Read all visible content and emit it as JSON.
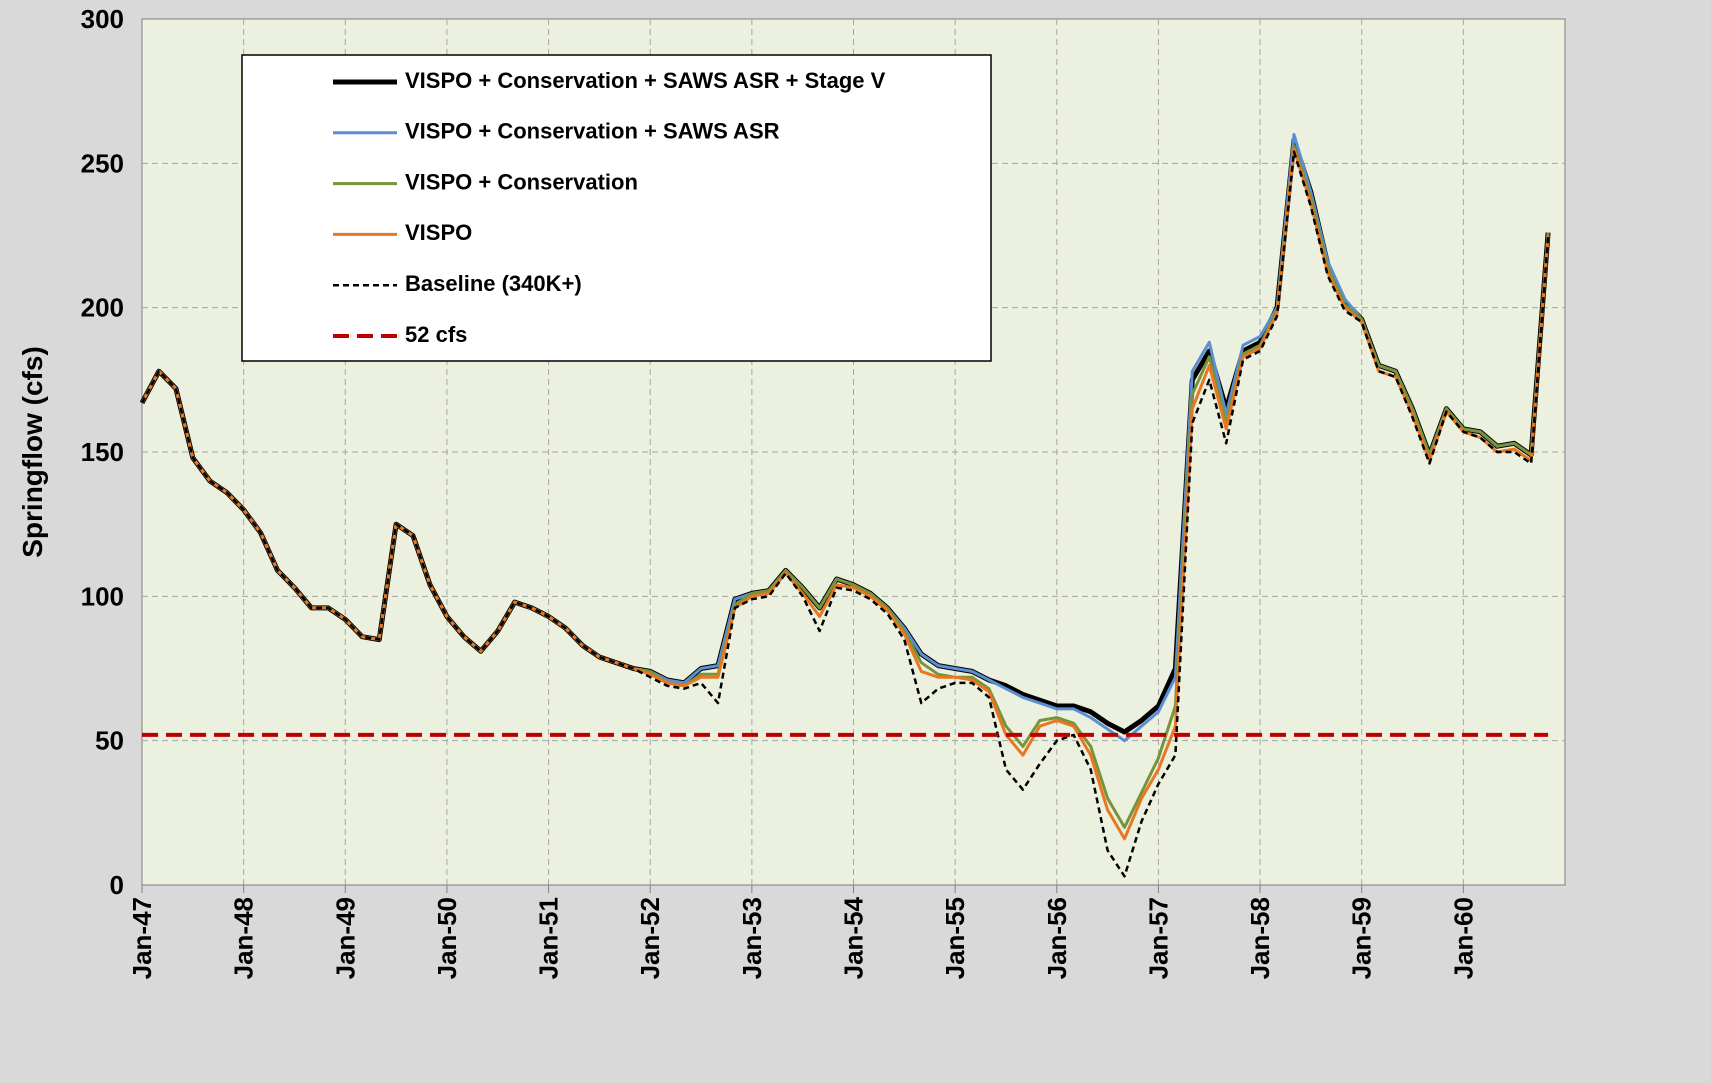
{
  "chart_data": {
    "type": "line",
    "y_label": "Springflow (cfs)",
    "categories": [
      "Jan-47",
      null,
      null,
      null,
      null,
      null,
      "Jan-48",
      null,
      null,
      null,
      null,
      null,
      "Jan-49",
      null,
      null,
      null,
      null,
      null,
      "Jan-50",
      null,
      null,
      null,
      null,
      null,
      "Jan-51",
      null,
      null,
      null,
      null,
      null,
      "Jan-52",
      null,
      null,
      null,
      null,
      null,
      "Jan-53",
      null,
      null,
      null,
      null,
      null,
      "Jan-54",
      null,
      null,
      null,
      null,
      null,
      "Jan-55",
      null,
      null,
      null,
      null,
      null,
      "Jan-56",
      null,
      null,
      null,
      null,
      null,
      "Jan-57",
      null,
      null,
      null,
      null,
      null,
      "Jan-58",
      null,
      null,
      null,
      null,
      null,
      "Jan-59",
      null,
      null,
      null,
      null,
      null,
      "Jan-60",
      null,
      null,
      null,
      null,
      null
    ],
    "ylim": [
      0,
      300
    ],
    "yticks": [
      0,
      50,
      100,
      150,
      200,
      250,
      300
    ],
    "grid": true,
    "legend": "upper left",
    "series": [
      {
        "name": "VISPO + Conservation + SAWS ASR +  Stage V",
        "color": "#000000",
        "width": 5,
        "dash": "none",
        "values": [
          167,
          178,
          172,
          148,
          140,
          136,
          130,
          122,
          109,
          103,
          96,
          96,
          92,
          86,
          85,
          125,
          121,
          104,
          93,
          86,
          81,
          88,
          98,
          96,
          93,
          89,
          83,
          79,
          77,
          75,
          74,
          71,
          70,
          75,
          76,
          99,
          101,
          102,
          109,
          103,
          96,
          106,
          104,
          101,
          96,
          89,
          80,
          76,
          75,
          74,
          71,
          69,
          66,
          64,
          62,
          62,
          60,
          56,
          53,
          57,
          62,
          75,
          175,
          185,
          165,
          185,
          188,
          200,
          258,
          240,
          215,
          202,
          196,
          180,
          178,
          165,
          149,
          165,
          158,
          157,
          152,
          153,
          149,
          226
        ]
      },
      {
        "name": "VISPO + Conservation + SAWS ASR",
        "color": "#5b8fd4",
        "width": 3,
        "dash": "none",
        "values": [
          167,
          178,
          172,
          148,
          140,
          136,
          130,
          122,
          109,
          103,
          96,
          96,
          92,
          86,
          85,
          125,
          121,
          104,
          93,
          86,
          81,
          88,
          98,
          96,
          93,
          89,
          83,
          79,
          77,
          75,
          74,
          71,
          70,
          75,
          76,
          99,
          101,
          102,
          109,
          103,
          96,
          106,
          104,
          101,
          96,
          89,
          80,
          76,
          75,
          74,
          71,
          68,
          65,
          63,
          61,
          61,
          58,
          54,
          50,
          55,
          60,
          72,
          178,
          188,
          163,
          187,
          190,
          200,
          260,
          240,
          216,
          203,
          196,
          180,
          178,
          165,
          149,
          165,
          158,
          157,
          152,
          153,
          149,
          226
        ]
      },
      {
        "name": "VISPO + Conservation",
        "color": "#77933c",
        "width": 3,
        "dash": "none",
        "values": [
          167,
          178,
          172,
          148,
          140,
          136,
          130,
          122,
          109,
          103,
          96,
          96,
          92,
          86,
          85,
          125,
          121,
          104,
          93,
          86,
          81,
          88,
          98,
          96,
          93,
          89,
          83,
          79,
          77,
          75,
          74,
          70,
          69,
          73,
          73,
          97,
          101,
          102,
          109,
          103,
          96,
          106,
          104,
          101,
          96,
          88,
          77,
          73,
          72,
          72,
          68,
          55,
          48,
          57,
          58,
          56,
          48,
          30,
          20,
          32,
          44,
          62,
          170,
          183,
          160,
          184,
          187,
          199,
          256,
          238,
          214,
          201,
          196,
          180,
          178,
          165,
          149,
          165,
          158,
          157,
          152,
          153,
          149,
          226
        ]
      },
      {
        "name": "VISPO",
        "color": "#e87722",
        "width": 3,
        "dash": "none",
        "values": [
          167,
          178,
          172,
          148,
          140,
          136,
          130,
          122,
          109,
          103,
          96,
          96,
          92,
          86,
          85,
          125,
          121,
          104,
          93,
          86,
          81,
          88,
          98,
          96,
          93,
          89,
          83,
          79,
          77,
          75,
          73,
          70,
          69,
          72,
          72,
          96,
          100,
          101,
          108,
          101,
          93,
          104,
          103,
          100,
          95,
          87,
          74,
          72,
          72,
          71,
          67,
          52,
          45,
          55,
          57,
          55,
          45,
          26,
          16,
          30,
          40,
          55,
          165,
          180,
          158,
          183,
          186,
          198,
          255,
          236,
          212,
          200,
          195,
          178,
          176,
          163,
          147,
          164,
          157,
          155,
          150,
          151,
          147,
          225
        ]
      },
      {
        "name": "Baseline (340K+)",
        "color": "#000000",
        "width": 2.5,
        "dash": "6,4",
        "values": [
          167,
          178,
          172,
          148,
          140,
          136,
          130,
          122,
          109,
          103,
          96,
          96,
          92,
          86,
          85,
          125,
          121,
          104,
          93,
          86,
          81,
          88,
          98,
          96,
          93,
          89,
          83,
          79,
          77,
          75,
          72,
          69,
          68,
          70,
          63,
          96,
          99,
          100,
          108,
          100,
          88,
          103,
          102,
          99,
          94,
          85,
          63,
          68,
          70,
          70,
          65,
          40,
          33,
          42,
          50,
          52,
          40,
          12,
          3,
          22,
          35,
          45,
          160,
          175,
          153,
          182,
          185,
          197,
          254,
          235,
          211,
          199,
          195,
          178,
          176,
          162,
          146,
          164,
          157,
          155,
          150,
          150,
          146,
          225
        ]
      },
      {
        "name": "52 cfs",
        "color": "#c00000",
        "width": 4,
        "dash": "16,8",
        "values": [
          52,
          52,
          52,
          52,
          52,
          52,
          52,
          52,
          52,
          52,
          52,
          52,
          52,
          52,
          52,
          52,
          52,
          52,
          52,
          52,
          52,
          52,
          52,
          52,
          52,
          52,
          52,
          52,
          52,
          52,
          52,
          52,
          52,
          52,
          52,
          52,
          52,
          52,
          52,
          52,
          52,
          52,
          52,
          52,
          52,
          52,
          52,
          52,
          52,
          52,
          52,
          52,
          52,
          52,
          52,
          52,
          52,
          52,
          52,
          52,
          52,
          52,
          52,
          52,
          52,
          52,
          52,
          52,
          52,
          52,
          52,
          52,
          52,
          52,
          52,
          52,
          52,
          52,
          52,
          52,
          52,
          52,
          52,
          52
        ]
      }
    ]
  }
}
